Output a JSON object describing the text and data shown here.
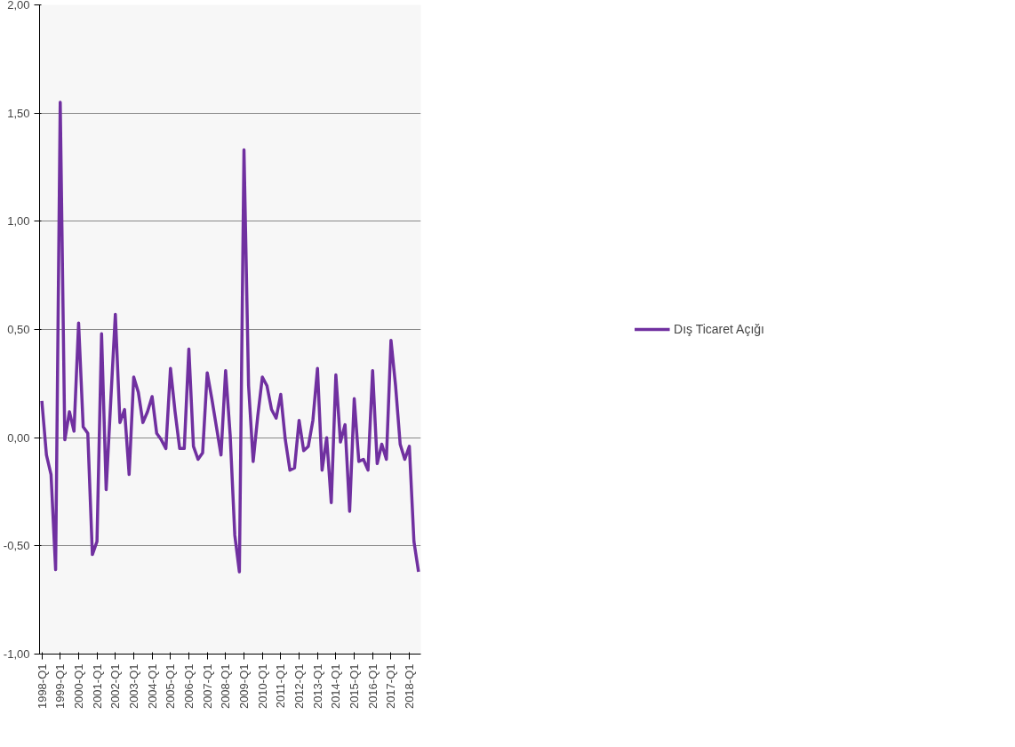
{
  "chart_data": {
    "type": "line",
    "categories": [
      "1998-Q1",
      null,
      null,
      null,
      "1999-Q1",
      null,
      null,
      null,
      "2000-Q1",
      null,
      null,
      null,
      "2001-Q1",
      null,
      null,
      null,
      "2002-Q1",
      null,
      null,
      null,
      "2003-Q1",
      null,
      null,
      null,
      "2004-Q1",
      null,
      null,
      null,
      "2005-Q1",
      null,
      null,
      null,
      "2006-Q1",
      null,
      null,
      null,
      "2007-Q1",
      null,
      null,
      null,
      "2008-Q1",
      null,
      null,
      null,
      "2009-Q1",
      null,
      null,
      null,
      "2010-Q1",
      null,
      null,
      null,
      "2011-Q1",
      null,
      null,
      null,
      "2012-Q1",
      null,
      null,
      null,
      "2013-Q1",
      null,
      null,
      null,
      "2014-Q1",
      null,
      null,
      null,
      "2015-Q1",
      null,
      null,
      null,
      "2016-Q1",
      null,
      null,
      null,
      "2017-Q1",
      null,
      null,
      null,
      "2018-Q1",
      null,
      null
    ],
    "series": [
      {
        "name": "Dış Ticaret Açığı",
        "color": "#7030a0",
        "values": [
          0.17,
          -0.08,
          -0.17,
          -0.61,
          1.55,
          -0.01,
          0.12,
          0.03,
          0.53,
          0.05,
          0.02,
          -0.54,
          -0.48,
          0.48,
          -0.24,
          0.17,
          0.57,
          0.07,
          0.13,
          -0.17,
          0.28,
          0.21,
          0.07,
          0.12,
          0.19,
          0.02,
          -0.01,
          -0.05,
          0.32,
          0.12,
          -0.05,
          -0.05,
          0.41,
          -0.04,
          -0.1,
          -0.07,
          0.3,
          0.18,
          0.05,
          -0.08,
          0.31,
          0.01,
          -0.45,
          -0.62,
          1.33,
          0.24,
          -0.11,
          0.1,
          0.28,
          0.24,
          0.13,
          0.09,
          0.2,
          -0.01,
          -0.15,
          -0.14,
          0.08,
          -0.06,
          -0.04,
          0.08,
          0.32,
          -0.15,
          0.0,
          -0.3,
          0.29,
          -0.02,
          0.06,
          -0.34,
          0.18,
          -0.11,
          -0.1,
          -0.15,
          0.31,
          -0.12,
          -0.03,
          -0.1,
          0.45,
          0.24,
          -0.03,
          -0.1,
          -0.04,
          -0.48,
          -0.62
        ]
      }
    ],
    "ylim": [
      -1,
      2
    ],
    "yticks": [
      {
        "value": -1,
        "label": "-1,00"
      },
      {
        "value": -0.5,
        "label": "-0,50"
      },
      {
        "value": 0,
        "label": "0,00"
      },
      {
        "value": 0.5,
        "label": "0,50"
      },
      {
        "value": 1,
        "label": "1,00"
      },
      {
        "value": 1.5,
        "label": "1,50"
      },
      {
        "value": 2,
        "label": "2,00"
      }
    ],
    "grid": "y",
    "legend": "right",
    "marker": "none",
    "line_style": "solid"
  }
}
